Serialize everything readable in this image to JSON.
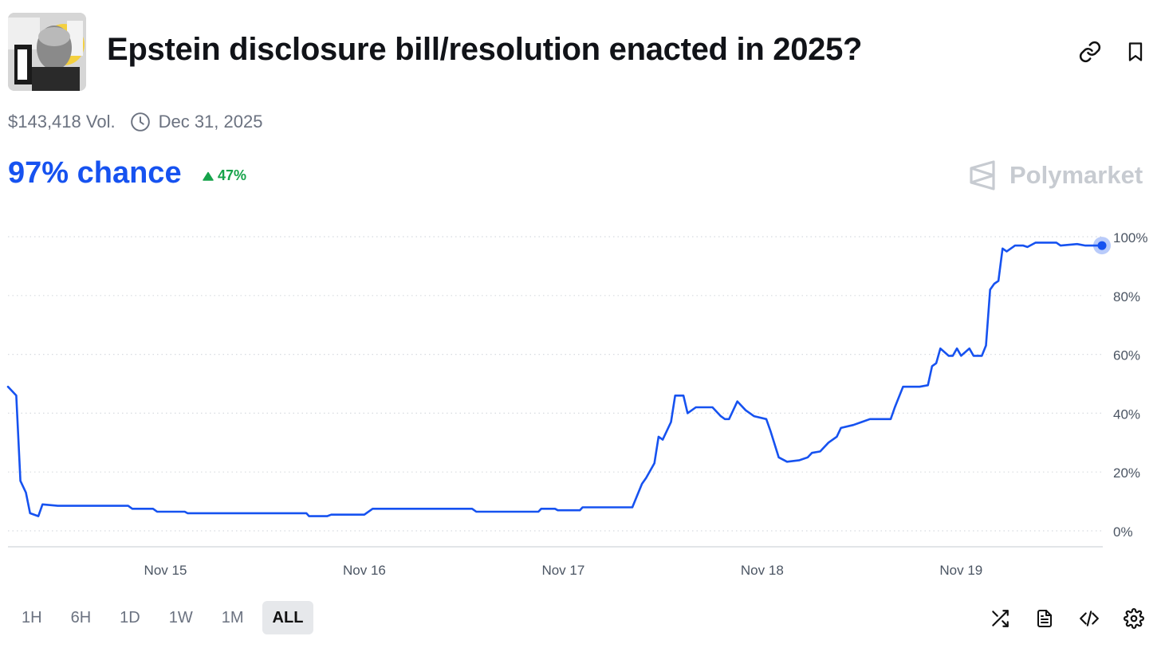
{
  "market": {
    "title": "Epstein disclosure bill/resolution enacted in 2025?",
    "volume": "$143,418 Vol.",
    "end_date": "Dec 31, 2025",
    "chance": "97% chance",
    "change": "47%",
    "brand": "Polymarket"
  },
  "icons": {
    "thumbnail": "market-thumbnail",
    "link": "link-icon",
    "bookmark": "bookmark-icon",
    "clock": "clock-icon",
    "up": "triangle-up-icon",
    "logo": "polymarket-logo-icon",
    "shuffle": "shuffle-icon",
    "document": "document-icon",
    "embed": "code-icon",
    "settings": "gear-icon"
  },
  "ranges": [
    {
      "label": "1H",
      "active": false
    },
    {
      "label": "6H",
      "active": false
    },
    {
      "label": "1D",
      "active": false
    },
    {
      "label": "1W",
      "active": false
    },
    {
      "label": "1M",
      "active": false
    },
    {
      "label": "ALL",
      "active": true
    }
  ],
  "colors": {
    "accent": "#1652f0",
    "positive": "#16a34a",
    "muted": "#6b7280",
    "grid": "#d7dbe0"
  },
  "chart_data": {
    "type": "line",
    "series": [
      {
        "name": "",
        "points": [
          [
            "2025-11-14T05:00",
            49
          ],
          [
            "2025-11-14T05:20",
            48
          ],
          [
            "2025-11-14T06:00",
            46
          ],
          [
            "2025-11-14T06:30",
            17
          ],
          [
            "2025-11-14T07:10",
            13
          ],
          [
            "2025-11-14T07:40",
            6
          ],
          [
            "2025-11-14T08:40",
            5
          ],
          [
            "2025-11-14T09:10",
            9
          ],
          [
            "2025-11-14T11:00",
            8.5
          ],
          [
            "2025-11-14T19:30",
            8.5
          ],
          [
            "2025-11-14T20:00",
            7.5
          ],
          [
            "2025-11-14T22:30",
            7.5
          ],
          [
            "2025-11-14T23:00",
            6.5
          ],
          [
            "2025-11-15T02:20",
            6.5
          ],
          [
            "2025-11-15T02:40",
            6
          ],
          [
            "2025-11-15T17:00",
            6
          ],
          [
            "2025-11-15T17:20",
            5
          ],
          [
            "2025-11-15T19:30",
            5
          ],
          [
            "2025-11-15T20:00",
            5.5
          ],
          [
            "2025-11-16T00:00",
            5.5
          ],
          [
            "2025-11-16T01:00",
            7.5
          ],
          [
            "2025-11-16T13:00",
            7.5
          ],
          [
            "2025-11-16T13:30",
            6.5
          ],
          [
            "2025-11-16T21:00",
            6.5
          ],
          [
            "2025-11-16T21:20",
            7.5
          ],
          [
            "2025-11-16T23:00",
            7.5
          ],
          [
            "2025-11-16T23:20",
            7
          ],
          [
            "2025-11-17T02:00",
            7
          ],
          [
            "2025-11-17T02:20",
            8
          ],
          [
            "2025-11-17T08:20",
            8
          ],
          [
            "2025-11-17T09:30",
            16
          ],
          [
            "2025-11-17T10:00",
            18
          ],
          [
            "2025-11-17T11:00",
            23
          ],
          [
            "2025-11-17T11:30",
            32
          ],
          [
            "2025-11-17T12:00",
            31
          ],
          [
            "2025-11-17T13:00",
            37
          ],
          [
            "2025-11-17T13:30",
            46
          ],
          [
            "2025-11-17T14:30",
            46
          ],
          [
            "2025-11-17T15:00",
            40
          ],
          [
            "2025-11-17T16:00",
            42
          ],
          [
            "2025-11-17T18:00",
            42
          ],
          [
            "2025-11-17T19:00",
            39
          ],
          [
            "2025-11-17T19:30",
            38
          ],
          [
            "2025-11-17T20:00",
            38
          ],
          [
            "2025-11-17T21:00",
            44
          ],
          [
            "2025-11-17T22:00",
            41
          ],
          [
            "2025-11-17T23:00",
            39
          ],
          [
            "2025-11-18T00:30",
            38
          ],
          [
            "2025-11-18T01:00",
            34
          ],
          [
            "2025-11-18T02:00",
            25
          ],
          [
            "2025-11-18T03:00",
            23.5
          ],
          [
            "2025-11-18T04:30",
            24
          ],
          [
            "2025-11-18T05:30",
            25
          ],
          [
            "2025-11-18T06:00",
            26.5
          ],
          [
            "2025-11-18T07:00",
            27
          ],
          [
            "2025-11-18T08:00",
            30
          ],
          [
            "2025-11-18T09:00",
            32
          ],
          [
            "2025-11-18T09:30",
            35
          ],
          [
            "2025-11-18T11:00",
            36
          ],
          [
            "2025-11-18T12:00",
            37
          ],
          [
            "2025-11-18T13:00",
            38
          ],
          [
            "2025-11-18T15:30",
            38
          ],
          [
            "2025-11-18T16:00",
            42
          ],
          [
            "2025-11-18T17:00",
            49
          ],
          [
            "2025-11-18T19:00",
            49
          ],
          [
            "2025-11-18T20:00",
            49.5
          ],
          [
            "2025-11-18T20:30",
            56
          ],
          [
            "2025-11-18T21:00",
            57
          ],
          [
            "2025-11-18T21:30",
            62
          ],
          [
            "2025-11-18T22:30",
            59.5
          ],
          [
            "2025-11-18T23:00",
            59.5
          ],
          [
            "2025-11-18T23:30",
            62
          ],
          [
            "2025-11-19T00:00",
            59.5
          ],
          [
            "2025-11-19T01:00",
            62
          ],
          [
            "2025-11-19T01:30",
            59.5
          ],
          [
            "2025-11-19T02:30",
            59.5
          ],
          [
            "2025-11-19T03:00",
            63
          ],
          [
            "2025-11-19T03:30",
            82
          ],
          [
            "2025-11-19T04:00",
            84
          ],
          [
            "2025-11-19T04:30",
            85
          ],
          [
            "2025-11-19T05:00",
            96
          ],
          [
            "2025-11-19T05:30",
            95
          ],
          [
            "2025-11-19T06:30",
            97
          ],
          [
            "2025-11-19T07:30",
            97
          ],
          [
            "2025-11-19T08:00",
            96.5
          ],
          [
            "2025-11-19T09:00",
            98
          ],
          [
            "2025-11-19T11:30",
            98
          ],
          [
            "2025-11-19T12:00",
            97
          ],
          [
            "2025-11-19T14:00",
            97.5
          ],
          [
            "2025-11-19T15:00",
            97
          ],
          [
            "2025-11-19T17:00",
            97
          ]
        ]
      }
    ],
    "x_ticks": [
      {
        "label": "Nov 15",
        "date": "2025-11-15T00:00"
      },
      {
        "label": "Nov 16",
        "date": "2025-11-16T00:00"
      },
      {
        "label": "Nov 17",
        "date": "2025-11-17T00:00"
      },
      {
        "label": "Nov 18",
        "date": "2025-11-18T00:00"
      },
      {
        "label": "Nov 19",
        "date": "2025-11-19T00:00"
      }
    ],
    "xlim": [
      "2025-11-14T05:00",
      "2025-11-19T17:00"
    ],
    "y_ticks": [
      {
        "label": "100%",
        "value": 100
      },
      {
        "label": "80%",
        "value": 80
      },
      {
        "label": "60%",
        "value": 60
      },
      {
        "label": "40%",
        "value": 40
      },
      {
        "label": "20%",
        "value": 20
      },
      {
        "label": "0%",
        "value": 0
      }
    ],
    "ylim": [
      0,
      100
    ],
    "grid": true,
    "y_axis_side": "right",
    "current_value": 97
  }
}
